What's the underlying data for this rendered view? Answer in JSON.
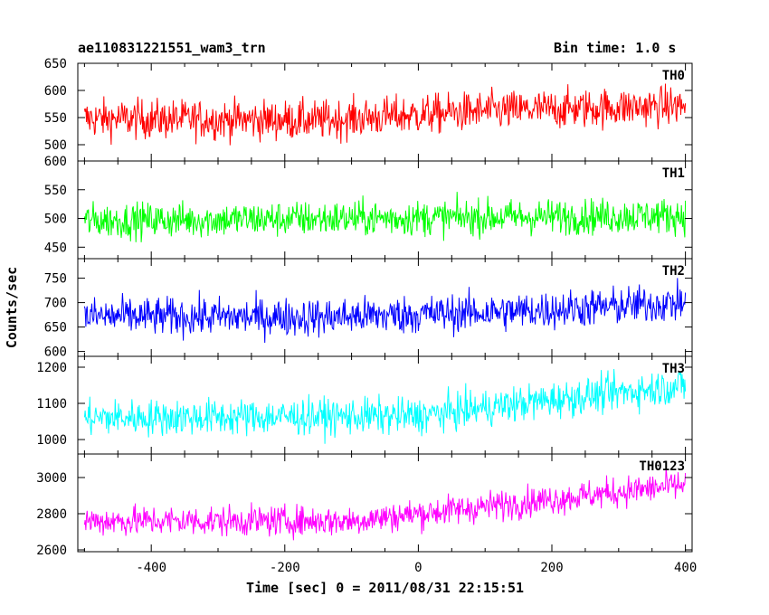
{
  "header": {
    "title": "ae110831221551_wam3_trn",
    "bin_time": "Bin time: 1.0 s"
  },
  "chart_data": {
    "type": "line",
    "title": "ae110831221551_wam3_trn",
    "subtitle": "Bin time: 1.0 s",
    "xlabel": "Time [sec] 0 = 2011/08/31 22:15:51",
    "ylabel": "Counts/sec",
    "xlim": [
      -510,
      410
    ],
    "x_range": [
      -500,
      400
    ],
    "x_step": 1,
    "xticks": [
      "-400",
      "-200",
      "0",
      "200",
      "400"
    ],
    "grid": false,
    "panels": [
      {
        "name": "TH0",
        "color": "#ff0000",
        "ylim": [
          470,
          650
        ],
        "yticks": [
          "500",
          "550",
          "600",
          "650"
        ],
        "trend": {
          "x": [
            -500,
            -150,
            100,
            400
          ],
          "y": [
            548,
            545,
            562,
            572
          ]
        },
        "noise": 26
      },
      {
        "name": "TH1",
        "color": "#00ff00",
        "ylim": [
          430,
          600
        ],
        "yticks": [
          "450",
          "500",
          "550",
          "600"
        ],
        "trend": {
          "x": [
            -500,
            400
          ],
          "y": [
            496,
            505
          ]
        },
        "noise": 22
      },
      {
        "name": "TH2",
        "color": "#0000ff",
        "ylim": [
          590,
          790
        ],
        "yticks": [
          "600",
          "650",
          "700",
          "750"
        ],
        "trend": {
          "x": [
            -500,
            -150,
            150,
            400
          ],
          "y": [
            672,
            670,
            682,
            700
          ]
        },
        "noise": 28
      },
      {
        "name": "TH3",
        "color": "#00ffff",
        "ylim": [
          960,
          1230
        ],
        "yticks": [
          "1000",
          "1100",
          "1200"
        ],
        "trend": {
          "x": [
            -500,
            0,
            200,
            400
          ],
          "y": [
            1060,
            1065,
            1110,
            1150
          ]
        },
        "noise": 36
      },
      {
        "name": "TH0123",
        "color": "#ff00ff",
        "ylim": [
          2590,
          3130
        ],
        "yticks": [
          "2600",
          "2800",
          "3000"
        ],
        "trend": {
          "x": [
            -500,
            -100,
            200,
            400
          ],
          "y": [
            2760,
            2760,
            2880,
            2960
          ]
        },
        "noise": 60
      }
    ]
  }
}
